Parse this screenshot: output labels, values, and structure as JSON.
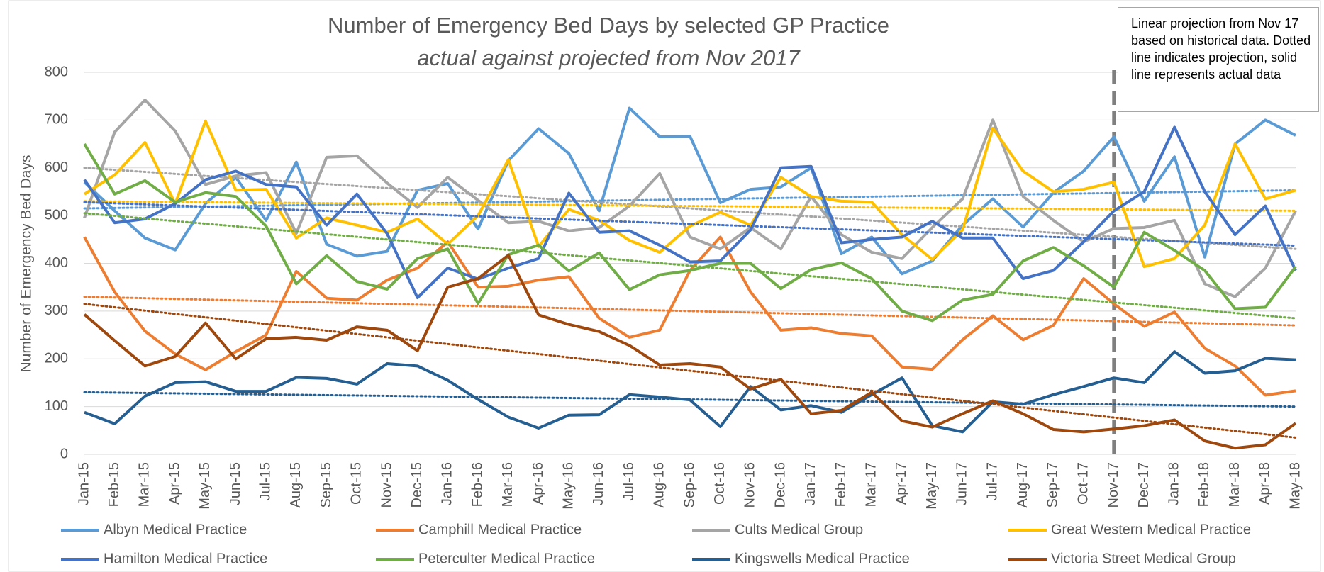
{
  "chart_data": {
    "type": "line",
    "title": "Number of Emergency Bed Days by selected GP Practice",
    "subtitle": "actual against projected from Nov 2017",
    "y_label": "Number of Emergency Bed Days",
    "annotation": "Linear projection from Nov 17 based on historical data. Dotted line indicates projection, solid line represents actual data",
    "projection_from": "Nov-17",
    "categories": [
      "Jan-15",
      "Feb-15",
      "Mar-15",
      "Apr-15",
      "May-15",
      "Jun-15",
      "Jul-15",
      "Aug-15",
      "Sep-15",
      "Oct-15",
      "Nov-15",
      "Dec-15",
      "Jan-16",
      "Feb-16",
      "Mar-16",
      "Apr-16",
      "May-16",
      "Jun-16",
      "Jul-16",
      "Aug-16",
      "Sep-16",
      "Oct-16",
      "Nov-16",
      "Dec-16",
      "Jan-17",
      "Feb-17",
      "Mar-17",
      "Apr-17",
      "May-17",
      "Jun-17",
      "Jul-17",
      "Aug-17",
      "Sep-17",
      "Oct-17",
      "Nov-17",
      "Dec-17",
      "Jan-18",
      "Feb-18",
      "Mar-18",
      "Apr-18",
      "May-18"
    ],
    "ylim": [
      0,
      800
    ],
    "yticks": [
      0,
      100,
      200,
      300,
      400,
      500,
      600,
      700,
      800
    ],
    "grid": true,
    "series": [
      {
        "name": "Albyn Medical Practice",
        "color": "#5b9bd5",
        "trend": [
          515,
          553
        ],
        "values": [
          570,
          510,
          453,
          428,
          525,
          580,
          490,
          612,
          440,
          415,
          425,
          553,
          567,
          472,
          615,
          682,
          630,
          510,
          725,
          665,
          666,
          527,
          555,
          560,
          600,
          420,
          455,
          378,
          405,
          480,
          535,
          476,
          548,
          593,
          665,
          530,
          623,
          413,
          650,
          700,
          668
        ]
      },
      {
        "name": "Camphill Medical Practice",
        "color": "#ed7d31",
        "trend": [
          330,
          270
        ],
        "values": [
          455,
          340,
          258,
          210,
          177,
          215,
          250,
          383,
          327,
          323,
          365,
          390,
          445,
          350,
          352,
          365,
          372,
          285,
          245,
          260,
          385,
          455,
          340,
          260,
          265,
          253,
          248,
          183,
          178,
          240,
          290,
          240,
          270,
          368,
          315,
          268,
          298,
          222,
          185,
          124,
          133
        ]
      },
      {
        "name": "Cults Medical Group",
        "color": "#a5a5a5",
        "trend": [
          600,
          430
        ],
        "values": [
          495,
          675,
          742,
          677,
          565,
          583,
          590,
          463,
          622,
          625,
          568,
          517,
          580,
          532,
          485,
          488,
          468,
          475,
          520,
          588,
          455,
          430,
          475,
          430,
          540,
          460,
          423,
          410,
          475,
          535,
          700,
          540,
          490,
          445,
          473,
          475,
          490,
          357,
          330,
          390,
          510
        ]
      },
      {
        "name": "Great Western Medical Practice",
        "color": "#ffc000",
        "trend": [
          530,
          510
        ],
        "values": [
          545,
          585,
          653,
          525,
          698,
          553,
          555,
          453,
          495,
          480,
          465,
          493,
          440,
          500,
          617,
          435,
          513,
          490,
          448,
          423,
          478,
          507,
          480,
          580,
          540,
          530,
          528,
          460,
          408,
          470,
          683,
          593,
          550,
          555,
          570,
          393,
          410,
          480,
          650,
          535,
          553
        ]
      },
      {
        "name": "Hamilton Medical Practice",
        "color": "#4472c4",
        "trend": [
          528,
          437
        ],
        "values": [
          575,
          485,
          493,
          525,
          575,
          593,
          565,
          560,
          480,
          545,
          462,
          328,
          390,
          367,
          390,
          410,
          547,
          465,
          468,
          438,
          403,
          405,
          470,
          600,
          603,
          443,
          450,
          455,
          488,
          453,
          453,
          368,
          385,
          445,
          510,
          550,
          685,
          550,
          460,
          520,
          385
        ]
      },
      {
        "name": "Peterculter Medical Practice",
        "color": "#70ad47",
        "trend": [
          505,
          285
        ],
        "values": [
          650,
          545,
          573,
          528,
          548,
          540,
          478,
          357,
          416,
          362,
          346,
          410,
          430,
          316,
          418,
          438,
          384,
          422,
          345,
          376,
          385,
          400,
          400,
          347,
          387,
          401,
          368,
          300,
          280,
          323,
          335,
          405,
          433,
          395,
          350,
          465,
          427,
          385,
          305,
          308,
          393
        ]
      },
      {
        "name": "Kingswells Medical Practice",
        "color": "#255e91",
        "trend": [
          130,
          100
        ],
        "values": [
          88,
          64,
          122,
          150,
          152,
          132,
          132,
          161,
          159,
          147,
          190,
          185,
          155,
          115,
          78,
          55,
          82,
          83,
          125,
          120,
          114,
          58,
          142,
          93,
          102,
          88,
          125,
          160,
          60,
          47,
          110,
          105,
          125,
          142,
          160,
          150,
          215,
          170,
          175,
          201,
          198
        ]
      },
      {
        "name": "Victoria Street Medical Group",
        "color": "#9e480e",
        "trend": [
          315,
          35
        ],
        "values": [
          293,
          238,
          185,
          205,
          275,
          200,
          242,
          245,
          239,
          267,
          260,
          217,
          350,
          368,
          417,
          292,
          272,
          257,
          228,
          187,
          190,
          183,
          137,
          157,
          85,
          92,
          130,
          70,
          57,
          85,
          112,
          85,
          52,
          47,
          53,
          60,
          72,
          28,
          13,
          20,
          65
        ]
      }
    ]
  }
}
